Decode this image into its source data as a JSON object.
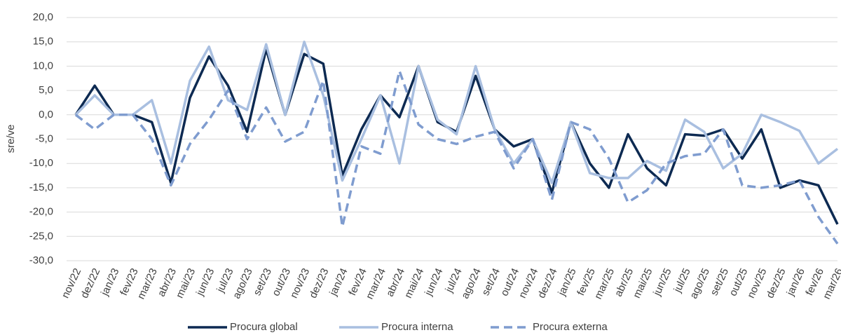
{
  "chart_data": {
    "type": "line",
    "y_label": "sre/ve",
    "categories": [
      "nov/22",
      "dez/22",
      "jan/23",
      "fev/23",
      "mar/23",
      "abr/23",
      "mai/23",
      "jun/23",
      "jul/23",
      "ago/23",
      "set/23",
      "out/23",
      "nov/23",
      "dez/23",
      "jan/24",
      "fev/24",
      "mar/24",
      "abr/24",
      "mai/24",
      "jun/24",
      "jul/24",
      "ago/24",
      "set/24",
      "out/24",
      "nov/24",
      "dez/24",
      "jan/25",
      "fev/25",
      "mar/25",
      "abr/25",
      "mai/25",
      "jun/25",
      "jul/25",
      "ago/25",
      "set/25",
      "out/25",
      "nov/25",
      "dez/25",
      "jan/26",
      "fev/26",
      "mar/26"
    ],
    "series": [
      {
        "name": "Procura global",
        "color": "#0d2a52",
        "dash": false,
        "values": [
          0,
          6,
          0,
          0,
          -1.5,
          -14,
          3.5,
          12,
          6,
          -3.5,
          13.5,
          0,
          12.5,
          10.5,
          -12.5,
          -3,
          4,
          -0.5,
          10,
          -1.5,
          -3.5,
          8,
          -3,
          -6.5,
          -5,
          -16,
          -1.5,
          -10,
          -15,
          -4,
          -11,
          -14.5,
          -4,
          -4.3,
          -3,
          -9,
          -3,
          -15,
          -13.5,
          -14.5,
          -22.5
        ]
      },
      {
        "name": "Procura interna",
        "color": "#a9bfe0",
        "dash": false,
        "values": [
          0,
          4,
          0,
          0,
          3,
          -10,
          7,
          14,
          3,
          1,
          14.5,
          0,
          15,
          4,
          -13.5,
          -5,
          4,
          -10,
          10,
          -1,
          -4,
          10,
          -3,
          -10,
          -5,
          -14,
          -1.5,
          -12,
          -13,
          -13,
          -9.5,
          -11.5,
          -1,
          -3.5,
          -11,
          -8,
          0,
          -1.5,
          -3.3,
          -10,
          -7
        ]
      },
      {
        "name": "Procura externa",
        "color": "#7f9ccf",
        "dash": true,
        "values": [
          0,
          -3,
          0,
          0,
          -5,
          -14.5,
          -6,
          -1,
          5,
          -5,
          1.5,
          -5.5,
          -3.5,
          7,
          -23,
          -6.5,
          -8,
          9,
          -2,
          -5,
          -6,
          -4.5,
          -3.5,
          -11,
          -5,
          -17.5,
          -1.5,
          -3,
          -9,
          -18,
          -15.5,
          -10,
          -8.5,
          -8,
          -3,
          -14.5,
          -15,
          -14.5,
          -13.5,
          -21,
          -26.5
        ]
      }
    ],
    "ylim": [
      -30,
      20
    ],
    "yticks": [
      {
        "value": -30,
        "label": "-30,0"
      },
      {
        "value": -25,
        "label": "-25,0"
      },
      {
        "value": -20,
        "label": "-20,0"
      },
      {
        "value": -15,
        "label": "-15,0"
      },
      {
        "value": -10,
        "label": "-10,0"
      },
      {
        "value": -5,
        "label": "-5,0"
      },
      {
        "value": 0,
        "label": "0,0"
      },
      {
        "value": 5,
        "label": "5,0"
      },
      {
        "value": 10,
        "label": "10,0"
      },
      {
        "value": 15,
        "label": "15,0"
      },
      {
        "value": 20,
        "label": "20,0"
      }
    ],
    "grid": true
  }
}
